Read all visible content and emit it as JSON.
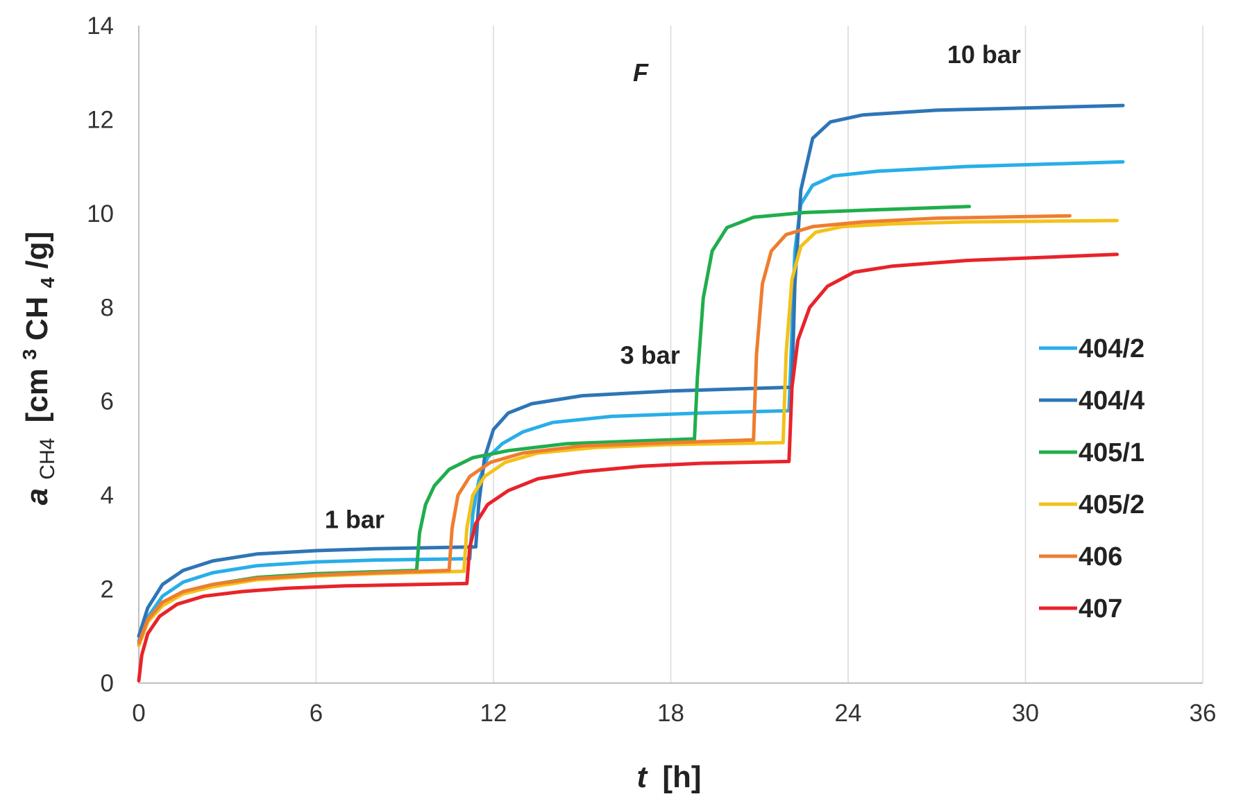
{
  "chart_data": {
    "type": "line",
    "title": "F",
    "xlabel": {
      "var": "t",
      "unit": "[h]"
    },
    "ylabel": {
      "var": "a",
      "sub": "CH4",
      "unit_pre": "[cm",
      "sup": "3",
      "unit_mid": "CH",
      "sub2": "4",
      "unit_post": "/g]"
    },
    "xlim": [
      0,
      36
    ],
    "ylim": [
      0,
      14
    ],
    "x_ticks": [
      "0",
      "6",
      "12",
      "18",
      "24",
      "30",
      "36"
    ],
    "y_ticks": [
      "0",
      "2",
      "4",
      "6",
      "8",
      "10",
      "12",
      "14"
    ],
    "grid": "vertical",
    "annotations": [
      {
        "text": "1 bar",
        "x": 7.3,
        "y": 3.3
      },
      {
        "text": "3 bar",
        "x": 17.3,
        "y": 6.8
      },
      {
        "text": "10 bar",
        "x": 28.6,
        "y": 13.2
      }
    ],
    "legend_position": "right",
    "series": [
      {
        "name": "404/2",
        "color": "#29aee8",
        "points": [
          [
            0,
            0.9
          ],
          [
            0.3,
            1.4
          ],
          [
            0.8,
            1.85
          ],
          [
            1.5,
            2.15
          ],
          [
            2.5,
            2.35
          ],
          [
            4,
            2.5
          ],
          [
            6,
            2.58
          ],
          [
            8,
            2.62
          ],
          [
            11.2,
            2.65
          ],
          [
            11.3,
            3.6
          ],
          [
            11.5,
            4.3
          ],
          [
            11.8,
            4.8
          ],
          [
            12.3,
            5.1
          ],
          [
            13,
            5.35
          ],
          [
            14,
            5.55
          ],
          [
            16,
            5.68
          ],
          [
            19,
            5.75
          ],
          [
            22,
            5.8
          ],
          [
            22.1,
            7.5
          ],
          [
            22.2,
            9.2
          ],
          [
            22.4,
            10.2
          ],
          [
            22.8,
            10.6
          ],
          [
            23.5,
            10.8
          ],
          [
            25,
            10.9
          ],
          [
            28,
            11.0
          ],
          [
            33.3,
            11.1
          ]
        ]
      },
      {
        "name": "404/4",
        "color": "#2e75b6",
        "points": [
          [
            0,
            1.0
          ],
          [
            0.3,
            1.6
          ],
          [
            0.8,
            2.1
          ],
          [
            1.5,
            2.4
          ],
          [
            2.5,
            2.6
          ],
          [
            4,
            2.75
          ],
          [
            6,
            2.82
          ],
          [
            8,
            2.86
          ],
          [
            11.4,
            2.9
          ],
          [
            11.5,
            3.8
          ],
          [
            11.7,
            4.8
          ],
          [
            12,
            5.4
          ],
          [
            12.5,
            5.75
          ],
          [
            13.3,
            5.95
          ],
          [
            15,
            6.12
          ],
          [
            18,
            6.22
          ],
          [
            22.1,
            6.3
          ],
          [
            22.2,
            8.5
          ],
          [
            22.4,
            10.5
          ],
          [
            22.8,
            11.6
          ],
          [
            23.4,
            11.95
          ],
          [
            24.5,
            12.1
          ],
          [
            27,
            12.2
          ],
          [
            33.3,
            12.3
          ]
        ]
      },
      {
        "name": "405/1",
        "color": "#1fae4c",
        "points": [
          [
            0,
            0.8
          ],
          [
            0.3,
            1.3
          ],
          [
            0.8,
            1.7
          ],
          [
            1.5,
            1.95
          ],
          [
            2.5,
            2.1
          ],
          [
            4,
            2.25
          ],
          [
            6,
            2.33
          ],
          [
            9.4,
            2.4
          ],
          [
            9.5,
            3.2
          ],
          [
            9.7,
            3.8
          ],
          [
            10,
            4.2
          ],
          [
            10.5,
            4.55
          ],
          [
            11.3,
            4.8
          ],
          [
            12.5,
            4.95
          ],
          [
            14.5,
            5.1
          ],
          [
            18.8,
            5.2
          ],
          [
            18.9,
            6.5
          ],
          [
            19.1,
            8.2
          ],
          [
            19.4,
            9.2
          ],
          [
            19.9,
            9.7
          ],
          [
            20.8,
            9.92
          ],
          [
            22.5,
            10.02
          ],
          [
            25,
            10.08
          ],
          [
            28.1,
            10.15
          ]
        ]
      },
      {
        "name": "405/2",
        "color": "#f2c21b",
        "points": [
          [
            0,
            0.8
          ],
          [
            0.3,
            1.3
          ],
          [
            0.8,
            1.65
          ],
          [
            1.5,
            1.9
          ],
          [
            2.5,
            2.05
          ],
          [
            4,
            2.2
          ],
          [
            6,
            2.28
          ],
          [
            8,
            2.33
          ],
          [
            11,
            2.38
          ],
          [
            11.1,
            3.3
          ],
          [
            11.3,
            4.0
          ],
          [
            11.7,
            4.4
          ],
          [
            12.4,
            4.7
          ],
          [
            13.5,
            4.9
          ],
          [
            15.5,
            5.02
          ],
          [
            18,
            5.08
          ],
          [
            21.8,
            5.12
          ],
          [
            21.9,
            7.0
          ],
          [
            22.1,
            8.6
          ],
          [
            22.4,
            9.3
          ],
          [
            22.9,
            9.6
          ],
          [
            23.8,
            9.72
          ],
          [
            25.5,
            9.78
          ],
          [
            28,
            9.82
          ],
          [
            33.1,
            9.85
          ]
        ]
      },
      {
        "name": "406",
        "color": "#ef7d2f",
        "points": [
          [
            0,
            0.85
          ],
          [
            0.3,
            1.35
          ],
          [
            0.8,
            1.72
          ],
          [
            1.5,
            1.95
          ],
          [
            2.5,
            2.1
          ],
          [
            4,
            2.23
          ],
          [
            6,
            2.3
          ],
          [
            8,
            2.35
          ],
          [
            10.5,
            2.4
          ],
          [
            10.6,
            3.3
          ],
          [
            10.8,
            4.0
          ],
          [
            11.2,
            4.4
          ],
          [
            11.9,
            4.7
          ],
          [
            13,
            4.9
          ],
          [
            15,
            5.05
          ],
          [
            18,
            5.12
          ],
          [
            20.8,
            5.18
          ],
          [
            20.9,
            7.0
          ],
          [
            21.1,
            8.5
          ],
          [
            21.4,
            9.2
          ],
          [
            21.9,
            9.55
          ],
          [
            22.8,
            9.72
          ],
          [
            24.5,
            9.82
          ],
          [
            27,
            9.9
          ],
          [
            31.5,
            9.95
          ]
        ]
      },
      {
        "name": "407",
        "color": "#e8232a",
        "points": [
          [
            0,
            0.05
          ],
          [
            0.1,
            0.6
          ],
          [
            0.3,
            1.05
          ],
          [
            0.7,
            1.42
          ],
          [
            1.3,
            1.68
          ],
          [
            2.2,
            1.85
          ],
          [
            3.5,
            1.95
          ],
          [
            5,
            2.02
          ],
          [
            7,
            2.07
          ],
          [
            11.1,
            2.12
          ],
          [
            11.2,
            2.9
          ],
          [
            11.4,
            3.4
          ],
          [
            11.8,
            3.8
          ],
          [
            12.5,
            4.1
          ],
          [
            13.5,
            4.35
          ],
          [
            15,
            4.5
          ],
          [
            17,
            4.62
          ],
          [
            19,
            4.68
          ],
          [
            22,
            4.72
          ],
          [
            22.1,
            6.3
          ],
          [
            22.3,
            7.3
          ],
          [
            22.7,
            8.0
          ],
          [
            23.3,
            8.45
          ],
          [
            24.2,
            8.75
          ],
          [
            25.5,
            8.88
          ],
          [
            28,
            9.0
          ],
          [
            33.1,
            9.13
          ]
        ]
      }
    ]
  }
}
